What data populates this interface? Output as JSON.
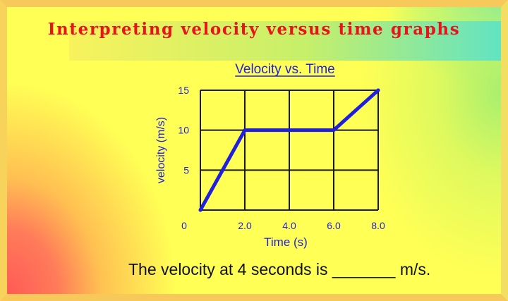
{
  "slide": {
    "title": "Interpreting velocity versus time graphs",
    "caption": "The velocity at 4 seconds is _______ m/s.",
    "colors": {
      "title": "#e8141b",
      "chart": "#1f1fdd",
      "grid": "#1a1a1a",
      "text": "#111111"
    }
  },
  "chart_data": {
    "type": "line",
    "title": "Velocity vs. Time",
    "xlabel": "Time (s)",
    "ylabel": "velocity (m/s)",
    "xlim": [
      0,
      8
    ],
    "ylim": [
      0,
      15
    ],
    "x_ticks": [
      0,
      2,
      4,
      6,
      8
    ],
    "x_tick_labels": [
      "2.0",
      "4.0",
      "6.0",
      "8.0"
    ],
    "y_ticks": [
      5,
      10,
      15
    ],
    "y_tick_labels": [
      "5",
      "10",
      "15"
    ],
    "origin_label": "0",
    "grid": true,
    "series": [
      {
        "x": [
          0,
          2,
          6,
          8
        ],
        "values": [
          0,
          10,
          10,
          15
        ]
      }
    ]
  }
}
